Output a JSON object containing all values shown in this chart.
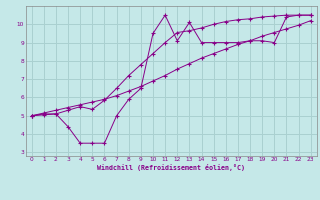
{
  "xlabel": "Windchill (Refroidissement éolien,°C)",
  "bg_color": "#c5e8e8",
  "grid_color": "#aad0d0",
  "line_color": "#880088",
  "xlim": [
    -0.5,
    23.5
  ],
  "ylim": [
    2.8,
    11.0
  ],
  "xticks": [
    0,
    1,
    2,
    3,
    4,
    5,
    6,
    7,
    8,
    9,
    10,
    11,
    12,
    13,
    14,
    15,
    16,
    17,
    18,
    19,
    20,
    21,
    22,
    23
  ],
  "yticks": [
    3,
    4,
    5,
    6,
    7,
    8,
    9,
    10
  ],
  "line1_x": [
    0,
    1,
    2,
    3,
    4,
    5,
    6,
    7,
    8,
    9,
    10,
    11,
    12,
    13,
    14,
    15,
    16,
    17,
    18,
    19,
    20,
    21,
    22,
    23
  ],
  "line1_y": [
    5.0,
    5.05,
    5.1,
    5.3,
    5.5,
    5.35,
    5.85,
    6.5,
    7.2,
    7.8,
    8.4,
    9.0,
    9.55,
    9.65,
    9.8,
    10.0,
    10.15,
    10.25,
    10.3,
    10.4,
    10.45,
    10.5,
    10.5,
    10.5
  ],
  "line2_x": [
    0,
    1,
    2,
    3,
    4,
    5,
    6,
    7,
    8,
    9,
    10,
    11,
    12,
    13,
    14,
    15,
    16,
    17,
    18,
    19,
    20,
    21,
    22,
    23
  ],
  "line2_y": [
    5.0,
    5.1,
    5.1,
    4.4,
    3.5,
    3.5,
    3.5,
    5.0,
    5.9,
    6.5,
    9.5,
    10.5,
    9.1,
    10.1,
    9.0,
    9.0,
    9.0,
    9.0,
    9.1,
    9.1,
    9.0,
    10.4,
    10.5,
    10.5
  ],
  "line3_x": [
    0,
    1,
    2,
    3,
    4,
    5,
    6,
    7,
    8,
    9,
    10,
    11,
    12,
    13,
    14,
    15,
    16,
    17,
    18,
    19,
    20,
    21,
    22,
    23
  ],
  "line3_y": [
    5.0,
    5.15,
    5.3,
    5.45,
    5.6,
    5.75,
    5.9,
    6.1,
    6.35,
    6.6,
    6.9,
    7.2,
    7.55,
    7.85,
    8.15,
    8.4,
    8.65,
    8.9,
    9.1,
    9.35,
    9.55,
    9.75,
    9.95,
    10.2
  ]
}
